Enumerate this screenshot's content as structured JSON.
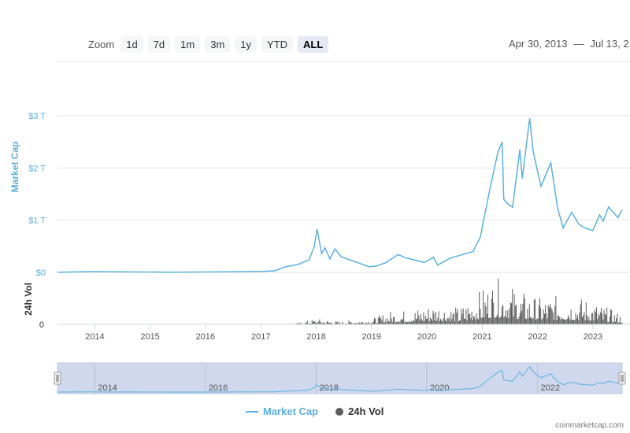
{
  "toolbar": {
    "zoom_label": "Zoom",
    "buttons": [
      "1d",
      "7d",
      "1m",
      "3m",
      "1y",
      "YTD",
      "ALL"
    ],
    "active": "ALL"
  },
  "range": {
    "from": "Apr 30, 2013",
    "separator": "—",
    "to": "Jul 13, 2"
  },
  "legend": {
    "market_cap": "Market Cap",
    "volume": "24h Vol"
  },
  "credit": "coinmarketcap.com",
  "colors": {
    "market_cap": "#5ab1e3",
    "volume": "#5c5c5c",
    "navigator_bg": "#ccd6eb"
  },
  "chart_data": {
    "type": "line",
    "x_axis": {
      "ticks": [
        "2014",
        "2015",
        "2016",
        "2017",
        "2018",
        "2019",
        "2020",
        "2021",
        "2022",
        "2023"
      ],
      "range": [
        "2013-04-30",
        "2023-07-13"
      ]
    },
    "y_axis_market_cap": {
      "label": "Market Cap",
      "ticks": [
        "$0",
        "$1 T",
        "$2 T",
        "$3 T"
      ],
      "range_trillions": [
        0,
        3
      ]
    },
    "y_axis_volume": {
      "label": "24h Vol",
      "ticks": [
        "0"
      ]
    },
    "navigator_ticks": [
      "2014",
      "2016",
      "2018",
      "2020",
      "2022"
    ],
    "series": [
      {
        "name": "Market Cap",
        "unit": "trillion USD",
        "points": [
          [
            "2013-04-30",
            0.0016
          ],
          [
            "2013-12-01",
            0.015
          ],
          [
            "2014-06-01",
            0.01
          ],
          [
            "2015-06-01",
            0.004
          ],
          [
            "2016-06-01",
            0.01
          ],
          [
            "2017-01-01",
            0.018
          ],
          [
            "2017-04-01",
            0.03
          ],
          [
            "2017-06-15",
            0.11
          ],
          [
            "2017-09-01",
            0.15
          ],
          [
            "2017-11-15",
            0.24
          ],
          [
            "2017-12-20",
            0.5
          ],
          [
            "2018-01-07",
            0.83
          ],
          [
            "2018-02-06",
            0.36
          ],
          [
            "2018-03-01",
            0.47
          ],
          [
            "2018-04-01",
            0.26
          ],
          [
            "2018-05-05",
            0.45
          ],
          [
            "2018-06-15",
            0.3
          ],
          [
            "2018-09-01",
            0.22
          ],
          [
            "2018-12-15",
            0.11
          ],
          [
            "2019-02-01",
            0.12
          ],
          [
            "2019-04-01",
            0.18
          ],
          [
            "2019-06-26",
            0.34
          ],
          [
            "2019-08-15",
            0.28
          ],
          [
            "2019-12-15",
            0.19
          ],
          [
            "2020-02-14",
            0.29
          ],
          [
            "2020-03-13",
            0.14
          ],
          [
            "2020-06-01",
            0.27
          ],
          [
            "2020-09-01",
            0.35
          ],
          [
            "2020-11-01",
            0.4
          ],
          [
            "2020-12-20",
            0.68
          ],
          [
            "2021-01-10",
            1.0
          ],
          [
            "2021-02-21",
            1.6
          ],
          [
            "2021-04-14",
            2.3
          ],
          [
            "2021-05-12",
            2.5
          ],
          [
            "2021-05-23",
            1.4
          ],
          [
            "2021-06-22",
            1.3
          ],
          [
            "2021-07-20",
            1.25
          ],
          [
            "2021-09-06",
            2.35
          ],
          [
            "2021-09-22",
            1.8
          ],
          [
            "2021-11-10",
            2.95
          ],
          [
            "2021-12-04",
            2.3
          ],
          [
            "2022-01-24",
            1.65
          ],
          [
            "2022-03-29",
            2.1
          ],
          [
            "2022-05-12",
            1.25
          ],
          [
            "2022-06-18",
            0.85
          ],
          [
            "2022-08-14",
            1.15
          ],
          [
            "2022-10-01",
            0.92
          ],
          [
            "2022-11-09",
            0.85
          ],
          [
            "2022-12-31",
            0.8
          ],
          [
            "2023-02-15",
            1.1
          ],
          [
            "2023-03-10",
            0.98
          ],
          [
            "2023-04-14",
            1.25
          ],
          [
            "2023-06-15",
            1.05
          ],
          [
            "2023-07-13",
            1.2
          ]
        ]
      },
      {
        "name": "24h Vol",
        "unit": "relative",
        "points": [
          [
            "2013-04-30",
            0.0
          ],
          [
            "2017-06-01",
            0.01
          ],
          [
            "2017-09-01",
            0.03
          ],
          [
            "2017-12-01",
            0.1
          ],
          [
            "2018-01-01",
            0.12
          ],
          [
            "2018-06-01",
            0.06
          ],
          [
            "2019-01-01",
            0.12
          ],
          [
            "2019-05-01",
            0.28
          ],
          [
            "2019-09-01",
            0.3
          ],
          [
            "2020-03-01",
            0.45
          ],
          [
            "2020-08-01",
            0.35
          ],
          [
            "2021-01-01",
            0.75
          ],
          [
            "2021-04-01",
            0.95
          ],
          [
            "2021-06-01",
            0.9
          ],
          [
            "2021-09-01",
            0.7
          ],
          [
            "2022-01-01",
            0.55
          ],
          [
            "2022-06-01",
            0.6
          ],
          [
            "2022-11-01",
            0.55
          ],
          [
            "2023-03-01",
            0.4
          ],
          [
            "2023-07-13",
            0.2
          ]
        ]
      }
    ],
    "legend_position": "bottom-center"
  }
}
